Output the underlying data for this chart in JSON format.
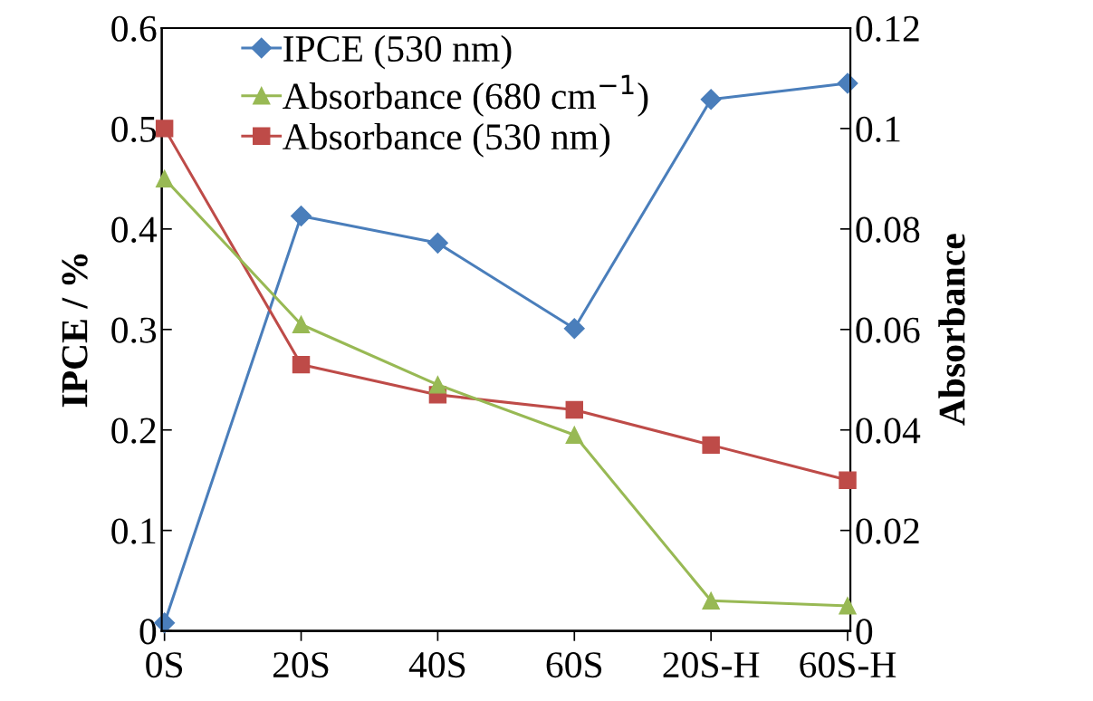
{
  "chart_data": {
    "type": "line",
    "ylabel": "IPCE / %",
    "y2label": "Absorbance",
    "categories": [
      "0S",
      "20S",
      "40S",
      "60S",
      "20S-H",
      "60S-H"
    ],
    "series": [
      {
        "name": "IPCE (530 nm)",
        "color": "#4a7ebb",
        "marker": "diamond",
        "values": [
          0.008,
          0.413,
          0.386,
          0.301,
          0.529,
          0.545
        ]
      },
      {
        "name": "Absorbance (680 cm$^{−1}$)",
        "color": "#98b954",
        "marker": "triangle",
        "axis": "y2",
        "values": [
          0.09,
          0.061,
          0.049,
          0.039,
          0.006,
          0.005
        ]
      },
      {
        "name": "Absorbance (530 nm)",
        "color": "#be4b48",
        "marker": "square",
        "axis": "y2",
        "values": [
          0.1,
          0.053,
          0.047,
          0.044,
          0.037,
          0.03
        ]
      }
    ],
    "ylim": [
      0,
      0.6
    ],
    "yticks": [
      0,
      0.1,
      0.2,
      0.3,
      0.4,
      0.5,
      0.6
    ],
    "y2lim": [
      0,
      0.12
    ],
    "y2ticks": [
      0,
      0.02,
      0.04,
      0.06,
      0.08,
      0.1,
      0.12
    ],
    "legend": "top left",
    "grid": false,
    "line_style": "solid"
  }
}
